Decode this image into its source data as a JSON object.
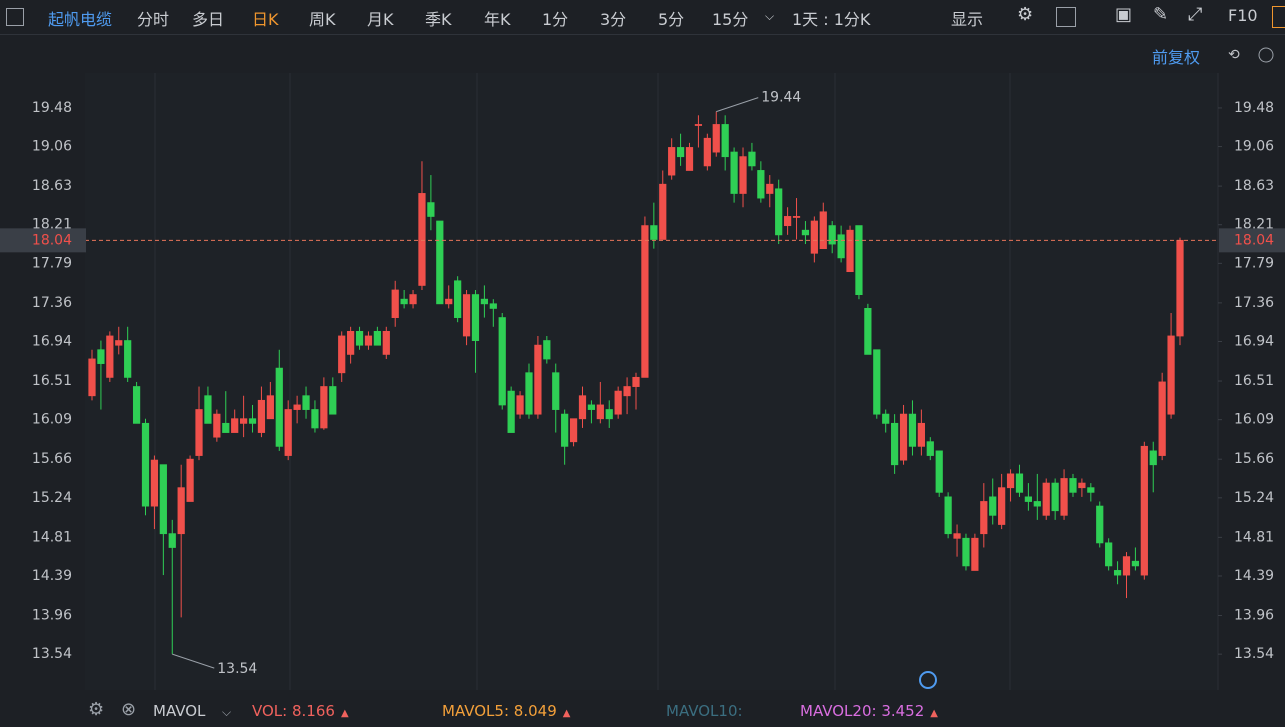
{
  "toolbar": {
    "stock": "起帆电缆",
    "tabs": [
      "分时",
      "多日",
      "日K",
      "周K",
      "月K",
      "季K",
      "年K",
      "1分",
      "3分",
      "5分",
      "15分"
    ],
    "period": "1天 : 1分K",
    "display": "显示",
    "f10": "F10"
  },
  "chart_data": {
    "type": "candlestick",
    "adjust": "前复权",
    "open": [
      16.35,
      16.85,
      16.55,
      16.9,
      16.95,
      16.45,
      16.05,
      15.15,
      15.6,
      14.85,
      14.85,
      15.2,
      15.7,
      16.35,
      15.9,
      16.05,
      15.95,
      16.05,
      16.1,
      15.95,
      16.1,
      16.65,
      15.7,
      16.2,
      16.35,
      16.2,
      16.0,
      16.45,
      16.6,
      16.8,
      17.05,
      16.9,
      17.05,
      16.8,
      17.2,
      17.4,
      17.35,
      17.55,
      18.45,
      18.25,
      17.35,
      17.6,
      17.0,
      17.45,
      17.4,
      17.35,
      17.2,
      16.4,
      16.15,
      16.6,
      16.15,
      16.95,
      16.6,
      16.15,
      15.85,
      16.1,
      16.25,
      16.1,
      16.2,
      16.15,
      16.35,
      16.45,
      16.55,
      18.2,
      18.05,
      18.75,
      19.05,
      18.8,
      19.3,
      18.85,
      19.0,
      19.3,
      19.0,
      18.55,
      19.0,
      18.8,
      18.55,
      18.6,
      18.2,
      18.3,
      18.15,
      17.9,
      17.95,
      18.2,
      18.1,
      17.7,
      18.2,
      17.3,
      16.85,
      16.15,
      16.05,
      15.65,
      16.15,
      15.8,
      15.85,
      15.75,
      15.25,
      14.8,
      14.8,
      14.45,
      14.85,
      15.25,
      14.95,
      15.35,
      15.5,
      15.25,
      15.2,
      15.05,
      15.4,
      15.05,
      15.45,
      15.35,
      15.35,
      15.15,
      14.75,
      14.45,
      14.4,
      14.55,
      14.4,
      15.75,
      15.7,
      16.15,
      17.0
    ],
    "high": [
      16.85,
      16.95,
      17.05,
      17.1,
      17.1,
      16.5,
      16.1,
      15.7,
      15.6,
      15.0,
      15.6,
      15.7,
      16.45,
      16.45,
      16.2,
      16.4,
      16.2,
      16.35,
      16.25,
      16.45,
      16.5,
      16.85,
      16.3,
      16.35,
      16.45,
      16.3,
      16.55,
      16.55,
      17.05,
      17.1,
      17.1,
      17.05,
      17.1,
      17.1,
      17.6,
      17.5,
      17.5,
      18.9,
      18.75,
      18.25,
      17.55,
      17.65,
      17.5,
      17.5,
      17.55,
      17.4,
      17.25,
      16.45,
      16.4,
      16.7,
      17.0,
      17.0,
      16.7,
      16.2,
      16.1,
      16.45,
      16.3,
      16.5,
      16.3,
      16.45,
      16.55,
      16.6,
      18.3,
      18.45,
      18.8,
      19.15,
      19.2,
      19.1,
      19.4,
      19.2,
      19.44,
      19.4,
      19.05,
      19.05,
      19.1,
      18.9,
      18.75,
      18.7,
      18.4,
      18.5,
      18.25,
      18.3,
      18.45,
      18.25,
      18.2,
      18.2,
      18.2,
      17.35,
      16.85,
      16.2,
      16.15,
      16.25,
      16.3,
      16.2,
      15.9,
      15.75,
      15.3,
      14.95,
      14.85,
      14.85,
      15.4,
      15.45,
      15.5,
      15.55,
      15.6,
      15.4,
      15.5,
      15.45,
      15.45,
      15.55,
      15.5,
      15.45,
      15.4,
      15.2,
      14.8,
      14.55,
      14.65,
      14.7,
      15.85,
      15.85,
      16.6,
      17.25,
      18.07
    ],
    "low": [
      16.3,
      16.2,
      16.5,
      16.8,
      16.5,
      16.05,
      15.05,
      14.9,
      14.4,
      13.54,
      13.94,
      15.2,
      15.65,
      16.05,
      15.85,
      15.95,
      15.95,
      15.9,
      15.95,
      15.9,
      16.1,
      15.75,
      15.65,
      16.05,
      16.1,
      15.95,
      15.98,
      16.15,
      16.5,
      16.7,
      16.85,
      16.85,
      16.9,
      16.75,
      17.1,
      17.3,
      17.3,
      17.5,
      18.15,
      17.35,
      17.3,
      17.15,
      16.9,
      16.6,
      17.2,
      17.1,
      16.2,
      15.95,
      16.1,
      16.1,
      16.1,
      16.7,
      15.95,
      15.6,
      15.8,
      16.0,
      16.05,
      16.05,
      16.0,
      16.1,
      16.15,
      16.2,
      16.55,
      17.95,
      18.05,
      18.7,
      18.85,
      18.8,
      19.05,
      18.8,
      18.95,
      18.8,
      18.45,
      18.4,
      18.8,
      18.45,
      18.4,
      18.0,
      18.1,
      18.05,
      18.0,
      17.8,
      17.95,
      17.9,
      17.8,
      17.7,
      17.4,
      16.8,
      16.1,
      15.95,
      15.5,
      15.6,
      15.7,
      15.7,
      15.65,
      15.25,
      14.8,
      14.6,
      14.45,
      14.45,
      14.7,
      14.95,
      14.9,
      15.2,
      15.25,
      15.1,
      15.0,
      15.0,
      15.0,
      15.0,
      15.25,
      15.25,
      15.2,
      14.7,
      14.45,
      14.3,
      14.15,
      14.45,
      14.35,
      15.3,
      15.65,
      16.1,
      16.9
    ],
    "close": [
      16.75,
      16.7,
      17.0,
      16.95,
      16.55,
      16.05,
      15.15,
      15.65,
      14.85,
      14.7,
      15.35,
      15.66,
      16.2,
      16.05,
      16.15,
      15.95,
      16.1,
      16.1,
      16.05,
      16.3,
      16.35,
      15.8,
      16.2,
      16.25,
      16.2,
      16.0,
      16.45,
      16.15,
      17.0,
      17.05,
      16.9,
      17.0,
      16.9,
      17.05,
      17.5,
      17.35,
      17.45,
      18.55,
      18.3,
      17.35,
      17.4,
      17.2,
      17.45,
      16.95,
      17.35,
      17.3,
      16.25,
      15.95,
      16.35,
      16.15,
      16.9,
      16.75,
      16.2,
      15.8,
      16.1,
      16.35,
      16.2,
      16.25,
      16.1,
      16.4,
      16.45,
      16.55,
      18.2,
      18.05,
      18.65,
      19.05,
      18.95,
      19.05,
      19.3,
      19.15,
      19.3,
      18.95,
      18.55,
      18.95,
      18.85,
      18.5,
      18.65,
      18.1,
      18.3,
      18.3,
      18.1,
      18.25,
      18.35,
      18.0,
      17.85,
      18.15,
      17.45,
      16.8,
      16.15,
      16.05,
      15.6,
      16.15,
      15.8,
      16.05,
      15.7,
      15.3,
      14.85,
      14.85,
      14.5,
      14.8,
      15.2,
      15.05,
      15.35,
      15.5,
      15.3,
      15.2,
      15.15,
      15.4,
      15.1,
      15.45,
      15.3,
      15.4,
      15.3,
      14.75,
      14.5,
      14.4,
      14.6,
      14.5,
      15.8,
      15.6,
      16.5,
      17.0,
      18.04
    ],
    "ylim": [
      13.15,
      19.86
    ],
    "yticks": [
      19.48,
      19.06,
      18.63,
      18.21,
      17.79,
      17.36,
      16.94,
      16.51,
      16.09,
      15.66,
      15.24,
      14.81,
      14.39,
      13.96,
      13.54
    ],
    "grid": false,
    "last_price": 18.04,
    "max_label": 19.44,
    "min_label": 13.54,
    "up_color": "#f0504b",
    "down_color": "#2fcf55"
  },
  "indicator": {
    "name": "MAVOL",
    "items": [
      {
        "name": "VOL:",
        "value": 8.166
      },
      {
        "name": "MAVOL5:",
        "value": 8.049
      },
      {
        "name": "MAVOL10:"
      },
      {
        "name": "MAVOL20:",
        "value": 3.452
      }
    ]
  }
}
